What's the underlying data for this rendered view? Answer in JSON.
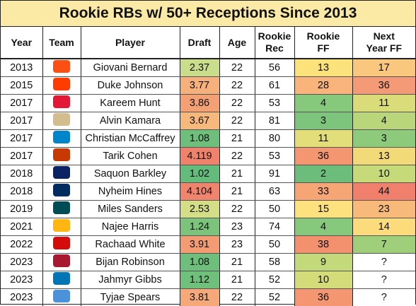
{
  "title": "Rookie RBs w/ 50+ Receptions Since 2013",
  "headers": {
    "year": "Year",
    "team": "Team",
    "player": "Player",
    "draft": "Draft",
    "age": "Age",
    "rookie_rec_1": "Rookie",
    "rookie_rec_2": "Rec",
    "rookie_ff_1": "Rookie",
    "rookie_ff_2": "FF",
    "next_ff_1": "Next",
    "next_ff_2": "Year FF"
  },
  "rows": [
    {
      "year": "2013",
      "team_icon": "bengals-logo-icon",
      "team_color": "#fb4f14",
      "player": "Giovani Bernard",
      "draft": "2.37",
      "draft_color": "#c9dd8a",
      "age": "22",
      "rec": "56",
      "ff": "13",
      "ff_color": "#fbe27a",
      "next": "17",
      "next_color": "#f9c77e"
    },
    {
      "year": "2015",
      "team_icon": "browns-logo-icon",
      "team_color": "#ff3c00",
      "player": "Duke Johnson",
      "draft": "3.77",
      "draft_color": "#f6b07c",
      "age": "22",
      "rec": "61",
      "ff": "28",
      "ff_color": "#f9b47b",
      "next": "36",
      "next_color": "#f49a76"
    },
    {
      "year": "2017",
      "team_icon": "chiefs-logo-icon",
      "team_color": "#e31837",
      "player": "Kareem Hunt",
      "draft": "3.86",
      "draft_color": "#f4a075",
      "age": "22",
      "rec": "53",
      "ff": "4",
      "ff_color": "#86c87c",
      "next": "11",
      "next_color": "#d9dc78"
    },
    {
      "year": "2017",
      "team_icon": "saints-logo-icon",
      "team_color": "#d3bc8d",
      "player": "Alvin Kamara",
      "draft": "3.67",
      "draft_color": "#f7b87c",
      "age": "22",
      "rec": "81",
      "ff": "3",
      "ff_color": "#7dc57c",
      "next": "4",
      "next_color": "#b9d77a"
    },
    {
      "year": "2017",
      "team_icon": "panthers-logo-icon",
      "team_color": "#0085ca",
      "player": "Christian McCaffrey",
      "draft": "1.08",
      "draft_color": "#6dbf7b",
      "age": "21",
      "rec": "80",
      "ff": "11",
      "ff_color": "#e2df7b",
      "next": "3",
      "next_color": "#8dca7b"
    },
    {
      "year": "2017",
      "team_icon": "bears-logo-icon",
      "team_color": "#c83803",
      "player": "Tarik Cohen",
      "draft": "4.119",
      "draft_color": "#f0826c",
      "age": "22",
      "rec": "53",
      "ff": "36",
      "ff_color": "#f4966f",
      "next": "13",
      "next_color": "#f2da78"
    },
    {
      "year": "2018",
      "team_icon": "giants-logo-icon",
      "team_color": "#0b2265",
      "player": "Saquon Barkley",
      "draft": "1.02",
      "draft_color": "#63bc7b",
      "age": "21",
      "rec": "91",
      "ff": "2",
      "ff_color": "#6cbd7b",
      "next": "10",
      "next_color": "#c6da79"
    },
    {
      "year": "2018",
      "team_icon": "colts-logo-icon",
      "team_color": "#002c5f",
      "player": "Nyheim Hines",
      "draft": "4.104",
      "draft_color": "#f0846c",
      "age": "21",
      "rec": "63",
      "ff": "33",
      "ff_color": "#f6a675",
      "next": "44",
      "next_color": "#f0806b"
    },
    {
      "year": "2019",
      "team_icon": "eagles-logo-icon",
      "team_color": "#004c54",
      "player": "Miles Sanders",
      "draft": "2.53",
      "draft_color": "#d3de86",
      "age": "22",
      "rec": "50",
      "ff": "15",
      "ff_color": "#fde17f",
      "next": "23",
      "next_color": "#f8ba7b"
    },
    {
      "year": "2021",
      "team_icon": "steelers-logo-icon",
      "team_color": "#ffb612",
      "player": "Najee Harris",
      "draft": "1.24",
      "draft_color": "#7cc47c",
      "age": "23",
      "rec": "74",
      "ff": "4",
      "ff_color": "#86c87c",
      "next": "14",
      "next_color": "#fbdb7c"
    },
    {
      "year": "2022",
      "team_icon": "buccaneers-logo-icon",
      "team_color": "#d50a0a",
      "player": "Rachaad White",
      "draft": "3.91",
      "draft_color": "#f39c74",
      "age": "23",
      "rec": "50",
      "ff": "38",
      "ff_color": "#f3906d",
      "next": "7",
      "next_color": "#9fcf7b"
    },
    {
      "year": "2023",
      "team_icon": "falcons-logo-icon",
      "team_color": "#a71930",
      "player": "Bijan Robinson",
      "draft": "1.08",
      "draft_color": "#6dbf7b",
      "age": "21",
      "rec": "58",
      "ff": "9",
      "ff_color": "#c4d97a",
      "next": "?",
      "next_color": "#ffffff"
    },
    {
      "year": "2023",
      "team_icon": "lions-logo-icon",
      "team_color": "#0076b6",
      "player": "Jahmyr Gibbs",
      "draft": "1.12",
      "draft_color": "#6fc07b",
      "age": "21",
      "rec": "52",
      "ff": "10",
      "ff_color": "#d4dc7a",
      "next": "?",
      "next_color": "#ffffff"
    },
    {
      "year": "2023",
      "team_icon": "titans-logo-icon",
      "team_color": "#4b92db",
      "player": "Tyjae Spears",
      "draft": "3.81",
      "draft_color": "#f5a878",
      "age": "22",
      "rec": "52",
      "ff": "36",
      "ff_color": "#f4966f",
      "next": "?",
      "next_color": "#ffffff"
    }
  ]
}
